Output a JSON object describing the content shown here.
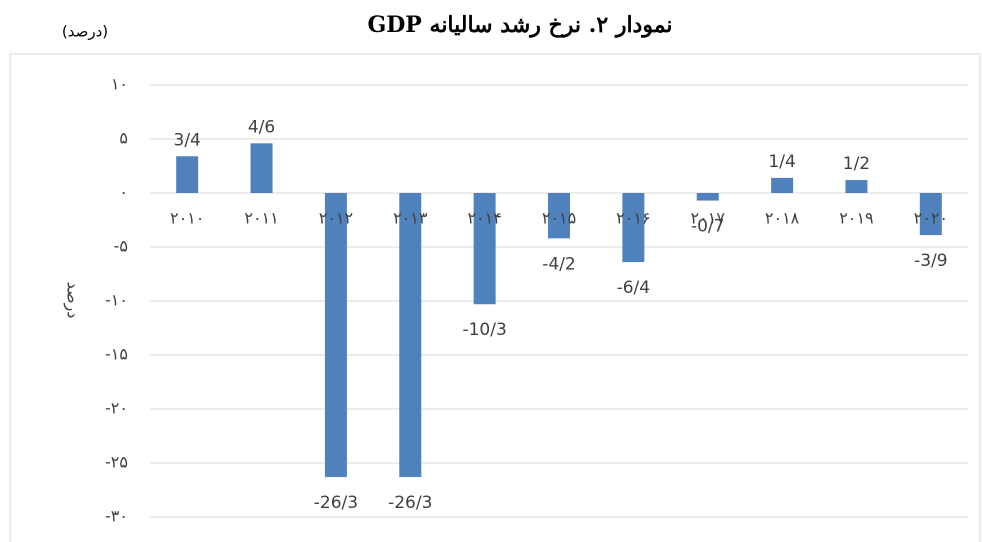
{
  "chart_data": {
    "type": "bar",
    "title": "نمودار ۲. نرخ رشد سالیانه GDP",
    "unit_note": "(درصد)",
    "y_label": "درصد",
    "categories": [
      "۲۰۱۰",
      "۲۰۱۱",
      "۲۰۱۲",
      "۲۰۱۳",
      "۲۰۱۴",
      "۲۰۱۵",
      "۲۰۱۶",
      "۲۰۱۷",
      "۲۰۱۸",
      "۲۰۱۹",
      "۲۰۲۰"
    ],
    "values": [
      3.4,
      4.6,
      -26.3,
      -26.3,
      -10.3,
      -4.2,
      -6.4,
      -0.7,
      1.4,
      1.2,
      -3.9
    ],
    "value_labels": [
      "3/4",
      "4/6",
      "-26/3",
      "-26/3",
      "-10/3",
      "-4/2",
      "-6/4",
      "-0/7",
      "1/4",
      "1/2",
      "-3/9"
    ],
    "color": "#4f81bd",
    "ylim": [
      -30,
      10
    ],
    "yticks": [
      {
        "value": 10,
        "label": "۱۰"
      },
      {
        "value": 5,
        "label": "۵"
      },
      {
        "value": 0,
        "label": "۰"
      },
      {
        "value": -5,
        "label": "-۵"
      },
      {
        "value": -10,
        "label": "-۱۰"
      },
      {
        "value": -15,
        "label": "-۱۵"
      },
      {
        "value": -20,
        "label": "-۲۰"
      },
      {
        "value": -25,
        "label": "-۲۵"
      },
      {
        "value": -30,
        "label": "-۳۰"
      }
    ],
    "grid": true
  }
}
